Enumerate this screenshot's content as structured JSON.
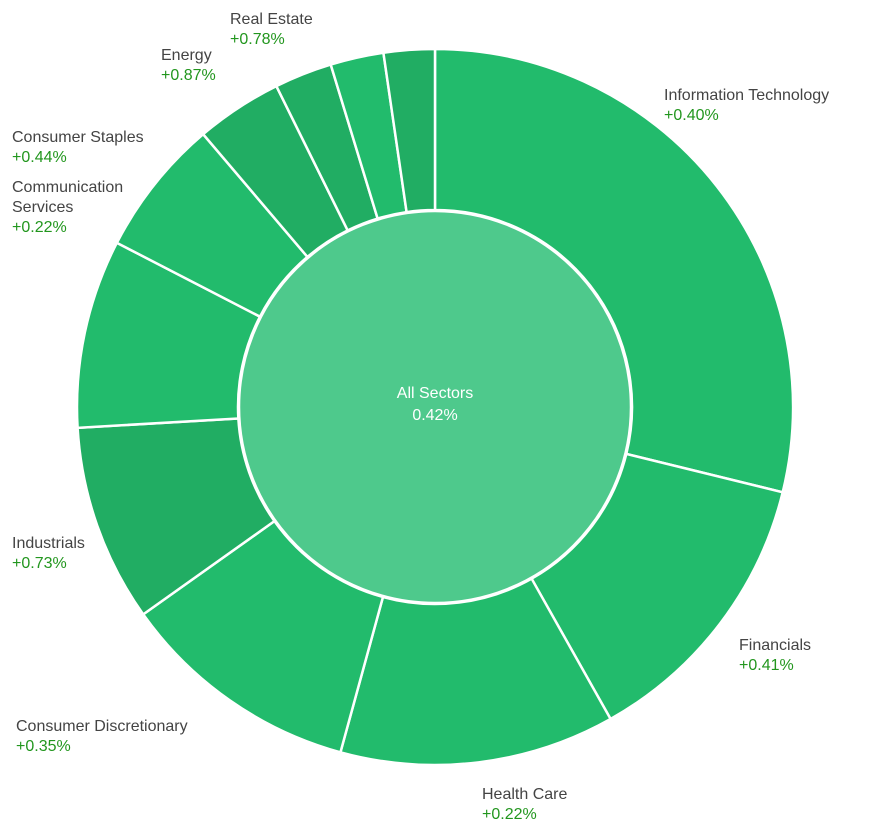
{
  "chart_data": {
    "type": "sunburst",
    "center": {
      "label": "All Sectors",
      "value": "0.42%"
    },
    "colors": {
      "segment": "#22bb6c",
      "segment_dark": "#21ad63",
      "center": "#4ec98c",
      "border": "#ffffff",
      "positive_text": "#22961e",
      "label_text": "#444444"
    },
    "segments": [
      {
        "name": "Information Technology",
        "change": "+0.40%",
        "share": 28.8,
        "shade": "segment"
      },
      {
        "name": "Financials",
        "change": "+0.41%",
        "share": 13.0,
        "shade": "segment"
      },
      {
        "name": "Health Care",
        "change": "+0.22%",
        "share": 12.4,
        "shade": "segment"
      },
      {
        "name": "Consumer Discretionary",
        "change": "+0.35%",
        "share": 10.9,
        "shade": "segment"
      },
      {
        "name": "Industrials",
        "change": "+0.73%",
        "share": 8.9,
        "shade": "segment_dark"
      },
      {
        "name": "Communication Services",
        "change": "+0.22%",
        "share": 8.5,
        "shade": "segment"
      },
      {
        "name": "Consumer Staples",
        "change": "+0.44%",
        "share": 6.2,
        "shade": "segment"
      },
      {
        "name": "Energy",
        "change": "+0.87%",
        "share": 3.9,
        "shade": "segment_dark"
      },
      {
        "share": 2.6,
        "shade": "segment_dark"
      },
      {
        "share": 2.4,
        "shade": "segment"
      },
      {
        "name": "Real Estate",
        "change": "+0.78%",
        "share": 2.3,
        "shade": "segment_dark"
      }
    ]
  }
}
